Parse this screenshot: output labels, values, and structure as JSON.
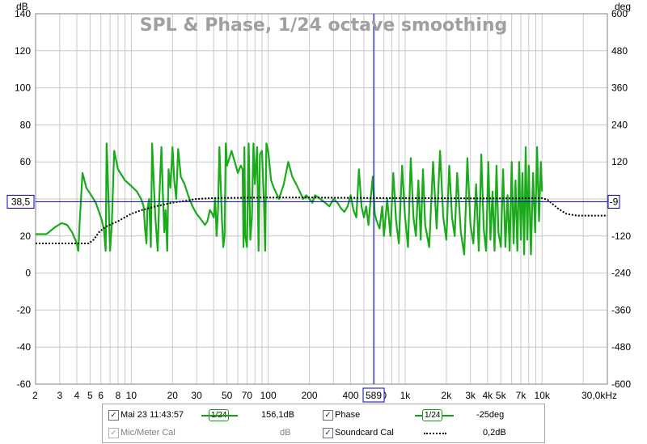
{
  "chart_data": {
    "type": "line",
    "title": "SPL & Phase, 1/24 octave smoothing",
    "y_left_unit": "dB",
    "y_right_unit": "deg",
    "x_scale": "log",
    "xlim": [
      2,
      30000
    ],
    "ylim_left": [
      -60,
      140
    ],
    "ylim_right": [
      -600,
      600
    ],
    "x_ticks": [
      {
        "v": 2,
        "l": "2"
      },
      {
        "v": 3,
        "l": "3"
      },
      {
        "v": 4,
        "l": "4"
      },
      {
        "v": 5,
        "l": "5"
      },
      {
        "v": 6,
        "l": "6"
      },
      {
        "v": 8,
        "l": "8"
      },
      {
        "v": 10,
        "l": "10"
      },
      {
        "v": 20,
        "l": "20"
      },
      {
        "v": 30,
        "l": "30"
      },
      {
        "v": 50,
        "l": "50"
      },
      {
        "v": 70,
        "l": "70"
      },
      {
        "v": 100,
        "l": "100"
      },
      {
        "v": 200,
        "l": "200"
      },
      {
        "v": 400,
        "l": "400"
      },
      {
        "v": 700,
        "l": "0"
      },
      {
        "v": 1000,
        "l": "1k"
      },
      {
        "v": 2000,
        "l": "2k"
      },
      {
        "v": 3000,
        "l": "3k"
      },
      {
        "v": 4000,
        "l": "4k"
      },
      {
        "v": 5000,
        "l": "5k"
      },
      {
        "v": 7000,
        "l": "7k"
      },
      {
        "v": 10000,
        "l": "10k"
      },
      {
        "v": 30000,
        "l": "30,0kHz"
      }
    ],
    "y_left_ticks": [
      "-60",
      "-40",
      "-20",
      "0",
      "20",
      "40",
      "60",
      "80",
      "100",
      "120",
      "140"
    ],
    "y_right_ticks": [
      "-600",
      "-480",
      "-360",
      "-240",
      "-120",
      "0",
      "120",
      "240",
      "360",
      "480",
      "600"
    ],
    "grid": true,
    "cursor": {
      "x": 589,
      "x_label": "589",
      "y_left": 38.5,
      "y_left_label": "38,5",
      "y_right_label": "-9"
    },
    "series": [
      {
        "color": "#1aaa1a",
        "points": [
          [
            2,
            21
          ],
          [
            2.4,
            21
          ],
          [
            2.8,
            25
          ],
          [
            3.1,
            27
          ],
          [
            3.4,
            26
          ],
          [
            3.7,
            22
          ],
          [
            4,
            16
          ],
          [
            4.1,
            12
          ],
          [
            4.2,
            28
          ],
          [
            4.4,
            54
          ],
          [
            4.7,
            46
          ],
          [
            5.1,
            42
          ],
          [
            5.5,
            38
          ],
          [
            6,
            30
          ],
          [
            6.3,
            24
          ],
          [
            6.5,
            12
          ],
          [
            6.6,
            70
          ],
          [
            6.7,
            58
          ],
          [
            6.8,
            42
          ],
          [
            7.0,
            12
          ],
          [
            7.2,
            26
          ],
          [
            7.5,
            66
          ],
          [
            8,
            56
          ],
          [
            9,
            50
          ],
          [
            10,
            47
          ],
          [
            11,
            44
          ],
          [
            11.8,
            40
          ],
          [
            12.3,
            36
          ],
          [
            12.6,
            24
          ],
          [
            12.9,
            16
          ],
          [
            13.1,
            34
          ],
          [
            13.5,
            40
          ],
          [
            13.9,
            14
          ],
          [
            14.2,
            70
          ],
          [
            14.6,
            48
          ],
          [
            15,
            30
          ],
          [
            15.6,
            12
          ],
          [
            16,
            40
          ],
          [
            16.6,
            68
          ],
          [
            17,
            44
          ],
          [
            17.4,
            22
          ],
          [
            17.8,
            34
          ],
          [
            18.3,
            12
          ],
          [
            18.7,
            56
          ],
          [
            19.3,
            46
          ],
          [
            20,
            68
          ],
          [
            20.6,
            50
          ],
          [
            21.3,
            40
          ],
          [
            22,
            67
          ],
          [
            23,
            52
          ],
          [
            24.5,
            48
          ],
          [
            26,
            42
          ],
          [
            28,
            36
          ],
          [
            30,
            32
          ],
          [
            31.5,
            30
          ],
          [
            33,
            28
          ],
          [
            34.5,
            26
          ],
          [
            36,
            28
          ],
          [
            37.5,
            34
          ],
          [
            39,
            32
          ],
          [
            40,
            30
          ],
          [
            41,
            40
          ],
          [
            42,
            20
          ],
          [
            43,
            34
          ],
          [
            44,
            68
          ],
          [
            45,
            48
          ],
          [
            46,
            28
          ],
          [
            47,
            14
          ],
          [
            48,
            20
          ],
          [
            49,
            70
          ],
          [
            50,
            58
          ],
          [
            52,
            62
          ],
          [
            54,
            66
          ],
          [
            57,
            60
          ],
          [
            60,
            54
          ],
          [
            63,
            58
          ],
          [
            65,
            56
          ],
          [
            66,
            14
          ],
          [
            67,
            68
          ],
          [
            68,
            20
          ],
          [
            70,
            14
          ],
          [
            72,
            70
          ],
          [
            74,
            18
          ],
          [
            76,
            30
          ],
          [
            78,
            70
          ],
          [
            80,
            48
          ],
          [
            83,
            68
          ],
          [
            85,
            12
          ],
          [
            87,
            64
          ],
          [
            90,
            66
          ],
          [
            93,
            40
          ],
          [
            95,
            12
          ],
          [
            97,
            70
          ],
          [
            100,
            66
          ],
          [
            105,
            50
          ],
          [
            110,
            46
          ],
          [
            120,
            40
          ],
          [
            130,
            48
          ],
          [
            140,
            60
          ],
          [
            150,
            52
          ],
          [
            160,
            48
          ],
          [
            170,
            44
          ],
          [
            180,
            40
          ],
          [
            190,
            42
          ],
          [
            200,
            40
          ],
          [
            210,
            38
          ],
          [
            220,
            42
          ],
          [
            240,
            40
          ],
          [
            260,
            38
          ],
          [
            280,
            36
          ],
          [
            300,
            40
          ],
          [
            320,
            38
          ],
          [
            340,
            35
          ],
          [
            360,
            33
          ],
          [
            380,
            36
          ],
          [
            400,
            42
          ],
          [
            420,
            34
          ],
          [
            440,
            30
          ],
          [
            460,
            56
          ],
          [
            480,
            36
          ],
          [
            500,
            30
          ],
          [
            520,
            36
          ],
          [
            540,
            26
          ],
          [
            560,
            40
          ],
          [
            580,
            52
          ],
          [
            600,
            32
          ],
          [
            620,
            28
          ],
          [
            650,
            24
          ],
          [
            680,
            36
          ],
          [
            700,
            20
          ],
          [
            740,
            40
          ],
          [
            780,
            20
          ],
          [
            820,
            54
          ],
          [
            860,
            28
          ],
          [
            900,
            16
          ],
          [
            950,
            58
          ],
          [
            1000,
            30
          ],
          [
            1050,
            14
          ],
          [
            1100,
            62
          ],
          [
            1150,
            30
          ],
          [
            1200,
            20
          ],
          [
            1250,
            50
          ],
          [
            1300,
            18
          ],
          [
            1350,
            56
          ],
          [
            1400,
            26
          ],
          [
            1500,
            14
          ],
          [
            1600,
            60
          ],
          [
            1700,
            24
          ],
          [
            1800,
            66
          ],
          [
            1900,
            30
          ],
          [
            2000,
            18
          ],
          [
            2100,
            58
          ],
          [
            2200,
            30
          ],
          [
            2300,
            20
          ],
          [
            2400,
            54
          ],
          [
            2550,
            22
          ],
          [
            2700,
            10
          ],
          [
            2850,
            62
          ],
          [
            3000,
            26
          ],
          [
            3150,
            16
          ],
          [
            3300,
            48
          ],
          [
            3450,
            12
          ],
          [
            3600,
            64
          ],
          [
            3750,
            24
          ],
          [
            3900,
            12
          ],
          [
            4050,
            60
          ],
          [
            4200,
            18
          ],
          [
            4350,
            44
          ],
          [
            4500,
            12
          ],
          [
            4650,
            58
          ],
          [
            4800,
            22
          ],
          [
            5000,
            14
          ],
          [
            5200,
            56
          ],
          [
            5400,
            14
          ],
          [
            5600,
            42
          ],
          [
            5800,
            12
          ],
          [
            6000,
            60
          ],
          [
            6200,
            16
          ],
          [
            6400,
            50
          ],
          [
            6600,
            12
          ],
          [
            6800,
            60
          ],
          [
            7000,
            18
          ],
          [
            7200,
            54
          ],
          [
            7400,
            10
          ],
          [
            7600,
            68
          ],
          [
            7800,
            18
          ],
          [
            8000,
            58
          ],
          [
            8300,
            10
          ],
          [
            8600,
            54
          ],
          [
            8900,
            22
          ],
          [
            9200,
            68
          ],
          [
            9500,
            28
          ],
          [
            9800,
            60
          ],
          [
            10000,
            44
          ]
        ]
      },
      {
        "color": "#000000",
        "dashed": true,
        "points": [
          [
            2,
            16
          ],
          [
            4.9,
            16
          ],
          [
            5.3,
            18
          ],
          [
            5.8,
            22
          ],
          [
            6.5,
            25
          ],
          [
            8,
            28
          ],
          [
            10,
            32
          ],
          [
            12,
            34
          ],
          [
            15,
            36
          ],
          [
            20,
            38
          ],
          [
            25,
            39
          ],
          [
            30,
            40
          ],
          [
            40,
            40.5
          ],
          [
            60,
            40.6
          ],
          [
            100,
            40.8
          ],
          [
            200,
            40.8
          ],
          [
            400,
            40.6
          ],
          [
            600,
            40.5
          ],
          [
            1000,
            40.5
          ],
          [
            2000,
            40.4
          ],
          [
            4000,
            40.3
          ],
          [
            6000,
            40.3
          ],
          [
            8000,
            40.4
          ],
          [
            10000,
            40.5
          ],
          [
            11000,
            39.5
          ],
          [
            13000,
            35
          ],
          [
            15000,
            32
          ],
          [
            18000,
            31
          ],
          [
            22000,
            31
          ],
          [
            30000,
            31
          ]
        ]
      }
    ]
  },
  "legend": {
    "rows": [
      [
        {
          "checked": true,
          "label": "Mai 23 11:43:57",
          "color": "#1a8a1a",
          "smoothing": "1/24",
          "value": "156,1dB"
        },
        {
          "checked": true,
          "label": "Phase",
          "color": "#1a8a1a",
          "smoothing": "1/24",
          "value": "-25deg"
        }
      ],
      [
        {
          "checked": true,
          "disabled": true,
          "label": "Mic/Meter Cal",
          "color": "#808080",
          "value": "dB"
        },
        {
          "checked": true,
          "label": "Soundcard Cal",
          "color": "#000000",
          "value": "0,2dB"
        }
      ]
    ]
  }
}
